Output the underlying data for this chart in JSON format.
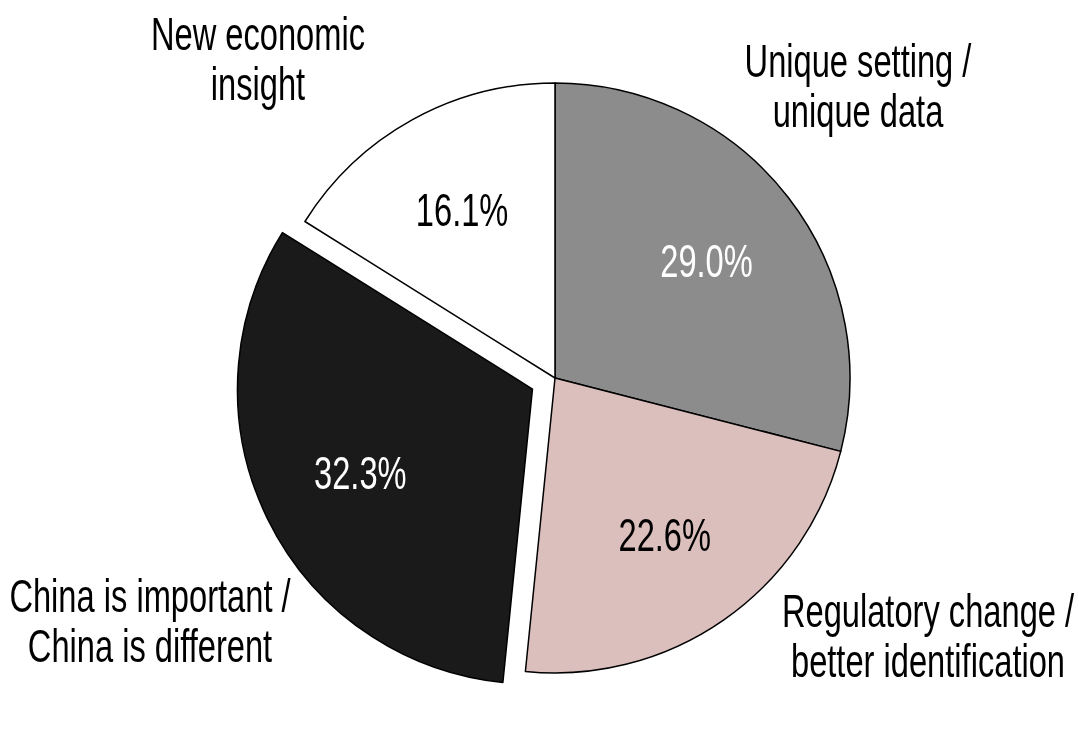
{
  "chart_data": {
    "type": "pie",
    "categories": [
      "Unique setting /\nunique data",
      "Regulatory change /\nbetter identification",
      "China is important /\nChina is different",
      "New economic\ninsight"
    ],
    "values": [
      29.0,
      22.6,
      32.3,
      16.1
    ],
    "colors": [
      "#8c8c8c",
      "#dbbfbc",
      "#1a1a1a",
      "#ffffff"
    ],
    "value_labels": [
      "29.0%",
      "22.6%",
      "32.3%",
      "16.1%"
    ]
  }
}
